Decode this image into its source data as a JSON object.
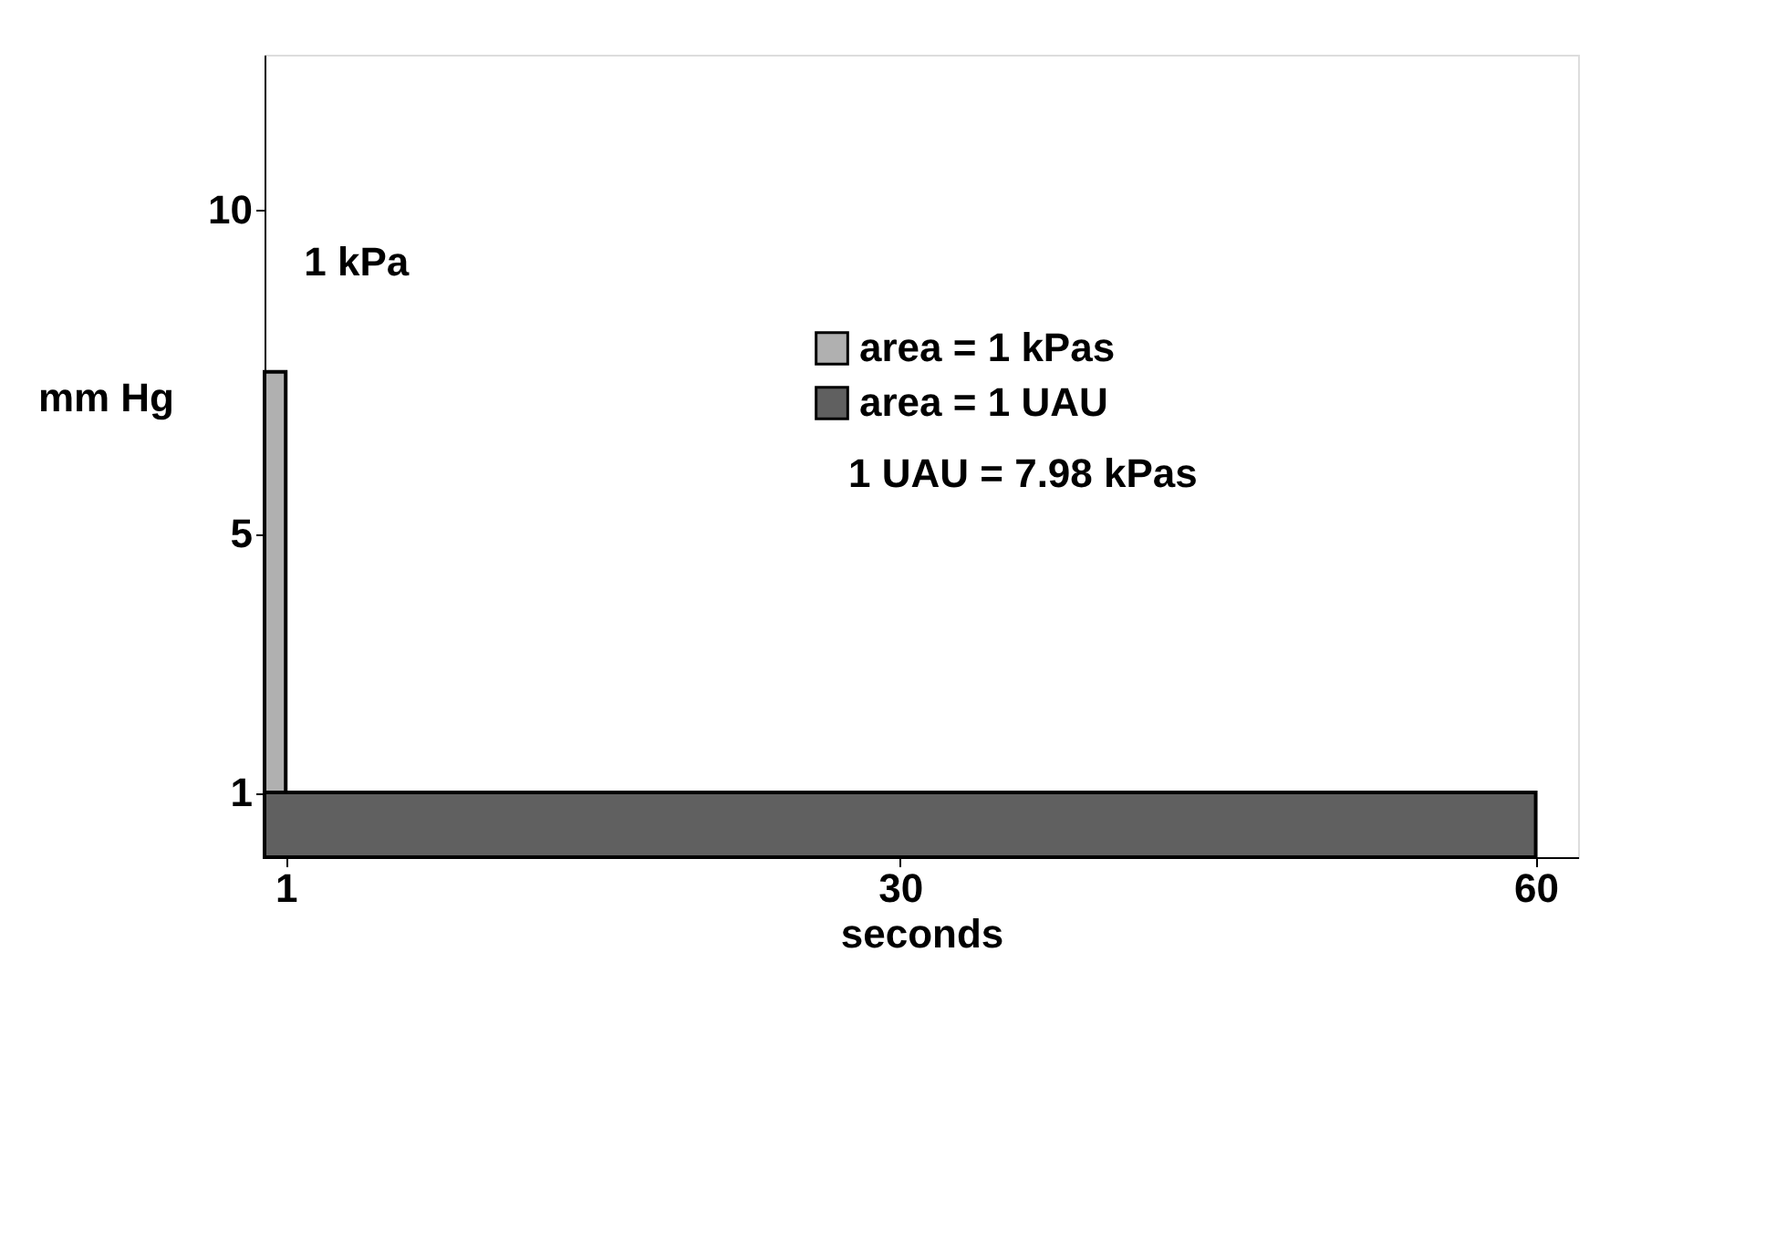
{
  "chart_data": {
    "type": "area",
    "xlabel": "seconds",
    "ylabel": "mm Hg",
    "xlim": [
      0,
      62
    ],
    "xticks": [
      1,
      30,
      60
    ],
    "ylim": [
      0,
      12.4
    ],
    "yticks": [
      1,
      5,
      10
    ],
    "series": [
      {
        "name": "area = 1 kPas",
        "color": "#b0b0b0",
        "x": [
          0,
          1
        ],
        "values": [
          7.5,
          7.5
        ]
      },
      {
        "name": "area = 1 UAU",
        "color": "#606060",
        "x": [
          0,
          60
        ],
        "values": [
          1,
          1
        ]
      }
    ],
    "legend": "top right",
    "grid": false,
    "annotations": [
      {
        "text": "1 kPa",
        "x": 1,
        "y": 7.5
      },
      "1 UAU = 7.98 kPas"
    ]
  }
}
